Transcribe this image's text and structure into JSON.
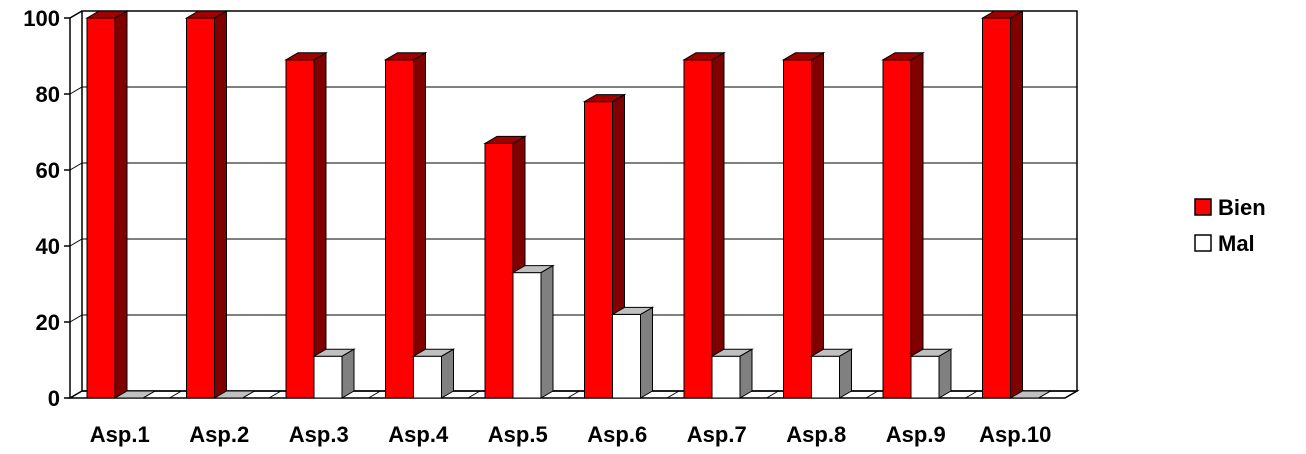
{
  "chart_data": {
    "type": "bar",
    "title": "",
    "xlabel": "",
    "ylabel": "",
    "categories": [
      "Asp.1",
      "Asp.2",
      "Asp.3",
      "Asp.4",
      "Asp.5",
      "Asp.6",
      "Asp.7",
      "Asp.8",
      "Asp.9",
      "Asp.10"
    ],
    "series": [
      {
        "name": "Bien",
        "values": [
          100,
          100,
          89,
          89,
          67,
          78,
          89,
          89,
          89,
          100
        ],
        "color": "#ff0000",
        "side_color": "#800000",
        "top_color": "#a00000"
      },
      {
        "name": "Mal",
        "values": [
          0,
          0,
          11,
          11,
          33,
          22,
          11,
          11,
          11,
          0
        ],
        "color": "#ffffff",
        "side_color": "#808080",
        "top_color": "#c0c0c0"
      }
    ],
    "ylim": [
      0,
      100
    ],
    "yticks": [
      0,
      20,
      40,
      60,
      80,
      100
    ],
    "grid": true,
    "legend_position": "right",
    "style": "3d-columns"
  }
}
